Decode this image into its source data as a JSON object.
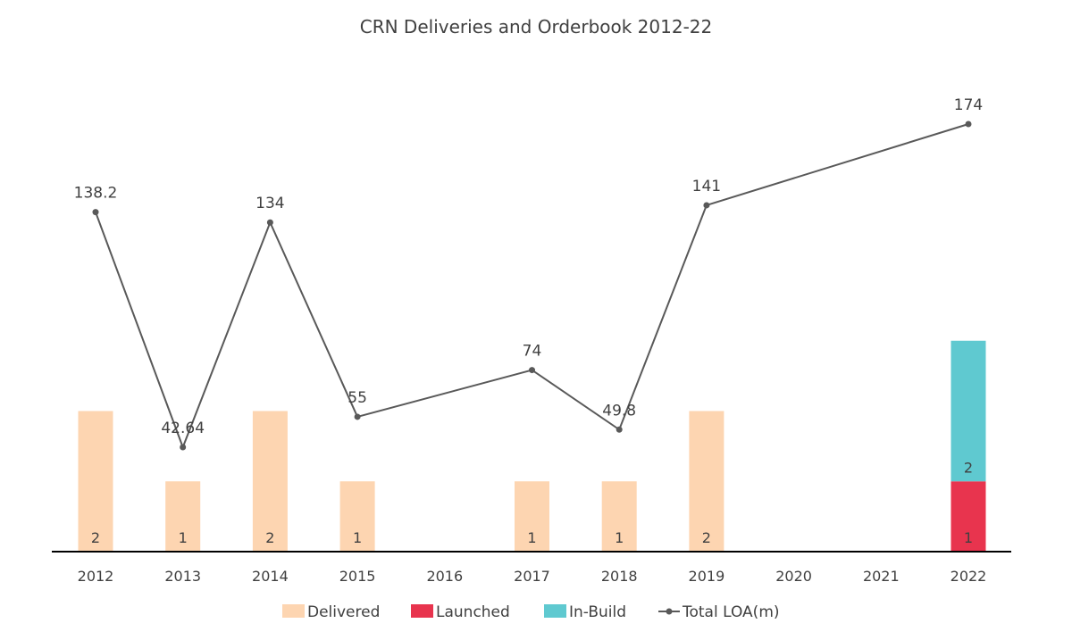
{
  "chart_data": {
    "type": "bar",
    "title": "CRN Deliveries and Orderbook 2012-22",
    "categories": [
      "2012",
      "2013",
      "2014",
      "2015",
      "2016",
      "2017",
      "2018",
      "2019",
      "2020",
      "2021",
      "2022"
    ],
    "series": [
      {
        "name": "Delivered",
        "color": "#FDD5B1",
        "values": [
          2,
          1,
          2,
          1,
          0,
          1,
          1,
          2,
          0,
          0,
          0
        ]
      },
      {
        "name": "Launched",
        "color": "#E8344E",
        "values": [
          0,
          0,
          0,
          0,
          0,
          0,
          0,
          0,
          0,
          0,
          1
        ]
      },
      {
        "name": "In-Build",
        "color": "#5FC9D0",
        "values": [
          0,
          0,
          0,
          0,
          0,
          0,
          0,
          0,
          0,
          0,
          2
        ]
      }
    ],
    "line_series": {
      "name": "Total LOA(m)",
      "color": "#595959",
      "values": [
        138.2,
        42.64,
        134,
        55,
        null,
        74,
        49.8,
        141,
        null,
        null,
        174
      ]
    },
    "bar_labels": [
      "2",
      "1",
      "2",
      "1",
      "",
      "1",
      "1",
      "2",
      "",
      "",
      "1 | 2"
    ],
    "line_labels": [
      "138.2",
      "42.64",
      "134",
      "55",
      "",
      "74",
      "49.8",
      "141",
      "",
      "",
      "174"
    ],
    "ylim_bars": [
      0,
      4
    ],
    "ylim_line": [
      0,
      200
    ],
    "grid": false,
    "legend_position": "bottom"
  }
}
